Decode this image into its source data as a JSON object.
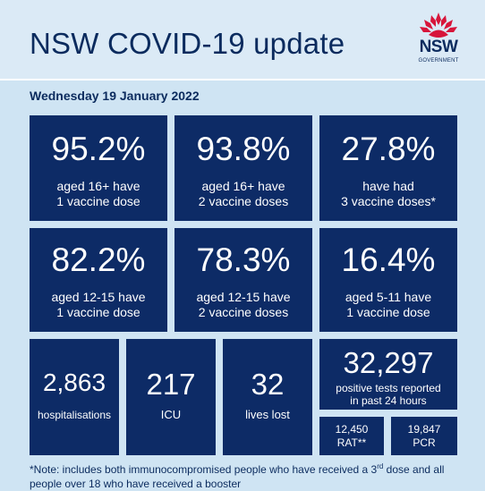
{
  "header": {
    "title": "NSW COVID-19 update",
    "logo_text": "NSW",
    "logo_subtext": "GOVERNMENT"
  },
  "date": "Wednesday 19 January 2022",
  "row1": [
    {
      "value": "95.2%",
      "line1": "aged 16+ have",
      "line2": "1 vaccine dose"
    },
    {
      "value": "93.8%",
      "line1": "aged 16+ have",
      "line2": "2 vaccine doses"
    },
    {
      "value": "27.8%",
      "line1": "have had",
      "line2": "3 vaccine doses*"
    }
  ],
  "row2": [
    {
      "value": "82.2%",
      "line1": "aged 12-15 have",
      "line2": "1 vaccine dose"
    },
    {
      "value": "78.3%",
      "line1": "aged 12-15 have",
      "line2": "2 vaccine doses"
    },
    {
      "value": "16.4%",
      "line1": "aged 5-11 have",
      "line2": "1 vaccine dose"
    }
  ],
  "row3": {
    "hospitalisations": {
      "value": "2,863",
      "label": "hospitalisations"
    },
    "icu": {
      "value": "217",
      "label": "ICU"
    },
    "deaths": {
      "value": "32",
      "label": "lives lost"
    },
    "positive": {
      "value": "32,297",
      "line1": "positive tests reported",
      "line2": "in past 24 hours"
    },
    "rat": {
      "value": "12,450",
      "label": "RAT**"
    },
    "pcr": {
      "value": "19,847",
      "label": "PCR"
    }
  },
  "note": {
    "part1": "*Note: includes both immunocompromised people who have received a 3",
    "sup": "rd",
    "part2": " dose and all people over 18 who have received a booster"
  },
  "colors": {
    "navy": "#0d2b66",
    "background": "#cfe4f3",
    "text": "#0b2b5e",
    "logo_red": "#d7153a"
  }
}
